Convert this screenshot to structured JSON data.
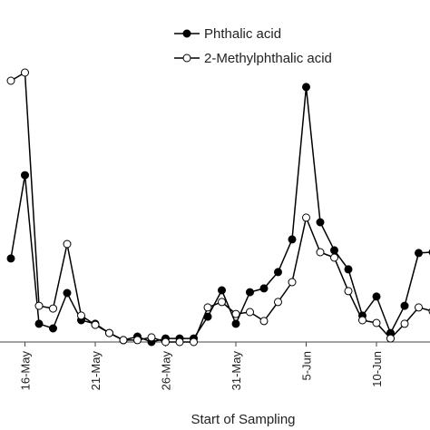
{
  "chart_data": {
    "type": "line",
    "xlabel": "Start of Sampling",
    "categories": [
      null,
      "16-May",
      null,
      null,
      null,
      null,
      "21-May",
      null,
      null,
      null,
      null,
      "26-May",
      null,
      null,
      null,
      null,
      "31-May",
      null,
      null,
      null,
      null,
      "5-Jun",
      null,
      null,
      null,
      null,
      "10-Jun",
      null,
      null,
      null,
      null
    ],
    "series": [
      {
        "name": "Phthalic acid",
        "color": "#000000",
        "marker": "filled",
        "values": [
          30.7,
          61.3,
          6.7,
          5,
          18,
          8,
          6.7,
          3.3,
          0.7,
          2,
          0,
          1.3,
          1.3,
          1.3,
          9.3,
          19,
          6.7,
          18.3,
          19.7,
          25.7,
          37.7,
          93.7,
          44,
          33.7,
          26.7,
          9.7,
          16.7,
          3.3,
          13.3,
          32.7,
          33
        ]
      },
      {
        "name": "2-Methylphthalic acid",
        "color": "#000000",
        "marker": "open",
        "values": [
          96,
          99,
          13.3,
          12.3,
          36,
          9.7,
          6.3,
          3.3,
          0.7,
          0.7,
          1.7,
          0,
          0,
          0,
          12.7,
          14.7,
          10.3,
          11,
          7.7,
          14.7,
          22,
          45.7,
          33,
          31,
          18.7,
          8,
          7,
          1.3,
          6.7,
          12.7,
          11.3
        ]
      }
    ],
    "ylim": [
      0,
      100
    ],
    "legend": "top-right"
  }
}
